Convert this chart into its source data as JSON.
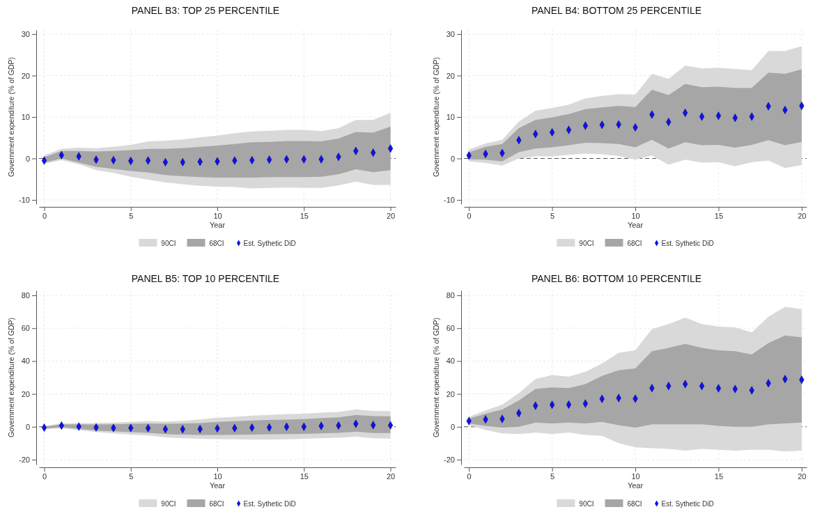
{
  "chart_data": [
    {
      "type": "scatter",
      "title": "PANEL B3: TOP 25 PERCENTILE",
      "xlabel": "Year",
      "ylabel": "Government expenditure (% of GDP)",
      "x": [
        0,
        1,
        2,
        3,
        4,
        5,
        6,
        7,
        8,
        9,
        10,
        11,
        12,
        13,
        14,
        15,
        16,
        17,
        18,
        19,
        20
      ],
      "xlim": [
        -0.3,
        20.3
      ],
      "xticks": [
        0,
        5,
        10,
        15,
        20
      ],
      "ylim": [
        -11,
        31
      ],
      "yticks": [
        -10,
        0,
        10,
        20,
        30
      ],
      "grid": true,
      "legend": "bottom",
      "marker": "diamond",
      "ref_lines": [
        {
          "axis": "y",
          "value": 0,
          "color": "#555555",
          "line_style": "dashed"
        }
      ],
      "series": [
        {
          "name": "90CI",
          "type": "area",
          "color": "#d9d9d9",
          "values": [
            null,
            null,
            null,
            null,
            null,
            null,
            null,
            null,
            null,
            null,
            null,
            null,
            null,
            null,
            null,
            null,
            null,
            null,
            null,
            null,
            null
          ],
          "lower": [
            -1.3,
            -0.4,
            -1.4,
            -2.8,
            -3.5,
            -4.4,
            -5.1,
            -5.8,
            -6.2,
            -6.6,
            -6.8,
            -6.9,
            -7.2,
            -7.1,
            -7,
            -7.1,
            -7.1,
            -6.5,
            -5.6,
            -6.4,
            -6.4
          ],
          "upper": [
            0.8,
            2.3,
            2.6,
            2.5,
            2.8,
            3.3,
            4.1,
            4.3,
            4.6,
            5.1,
            5.5,
            6.1,
            6.5,
            6.7,
            6.9,
            6.9,
            6.6,
            7.3,
            9.3,
            9.3,
            11
          ]
        },
        {
          "name": "68CI",
          "type": "area",
          "color": "#a6a6a6",
          "values": [
            null,
            null,
            null,
            null,
            null,
            null,
            null,
            null,
            null,
            null,
            null,
            null,
            null,
            null,
            null,
            null,
            null,
            null,
            null,
            null,
            null
          ],
          "lower": [
            -1,
            0,
            -1,
            -2,
            -2.5,
            -3,
            -3.4,
            -4,
            -4.3,
            -4.5,
            -4.6,
            -4.6,
            -4.6,
            -4.5,
            -4.5,
            -4.5,
            -4.4,
            -3.8,
            -2.6,
            -3.3,
            -2.8
          ],
          "upper": [
            0.3,
            1.8,
            1.8,
            1.7,
            1.8,
            2,
            2.3,
            2.3,
            2.5,
            2.8,
            3.1,
            3.5,
            3.9,
            4,
            4.2,
            4.2,
            4.1,
            4.8,
            6.4,
            6.2,
            7.7
          ]
        },
        {
          "name": "Est. Sythetic DiD",
          "color": "#1010ee",
          "values": [
            -0.5,
            0.8,
            0.5,
            -0.3,
            -0.4,
            -0.6,
            -0.5,
            -0.9,
            -0.9,
            -0.8,
            -0.7,
            -0.5,
            -0.4,
            -0.3,
            -0.2,
            -0.2,
            -0.2,
            0.4,
            1.8,
            1.4,
            2.4
          ]
        }
      ]
    },
    {
      "type": "scatter",
      "title": "PANEL B4: BOTTOM 25 PERCENTILE",
      "xlabel": "Year",
      "ylabel": "Government expenditure (% of GDP)",
      "x": [
        0,
        1,
        2,
        3,
        4,
        5,
        6,
        7,
        8,
        9,
        10,
        11,
        12,
        13,
        14,
        15,
        16,
        17,
        18,
        19,
        20
      ],
      "xlim": [
        -0.3,
        20.3
      ],
      "xticks": [
        0,
        5,
        10,
        15,
        20
      ],
      "ylim": [
        -11,
        31
      ],
      "yticks": [
        -10,
        0,
        10,
        20,
        30
      ],
      "grid": true,
      "legend": "bottom",
      "marker": "diamond",
      "ref_lines": [
        {
          "axis": "y",
          "value": 0,
          "color": "#555555",
          "line_style": "dashed"
        }
      ],
      "series": [
        {
          "name": "90CI",
          "type": "area",
          "color": "#d9d9d9",
          "values": [
            null,
            null,
            null,
            null,
            null,
            null,
            null,
            null,
            null,
            null,
            null,
            null,
            null,
            null,
            null,
            null,
            null,
            null,
            null,
            null,
            null
          ],
          "lower": [
            -0.7,
            -1.1,
            -1.7,
            0,
            0.5,
            0.5,
            0.9,
            1.2,
            1,
            0.6,
            -0.3,
            0.7,
            -1.5,
            -0.3,
            -1,
            -0.9,
            -1.9,
            -0.9,
            -0.5,
            -2.3,
            -1.6
          ],
          "upper": [
            2.2,
            3.6,
            4.5,
            8.9,
            11.5,
            12.2,
            13,
            14.5,
            15.1,
            15.5,
            15.4,
            20.4,
            19.2,
            22.4,
            21.7,
            21.9,
            21.6,
            21.3,
            25.9,
            25.9,
            27.1
          ]
        },
        {
          "name": "68CI",
          "type": "area",
          "color": "#a6a6a6",
          "values": [
            null,
            null,
            null,
            null,
            null,
            null,
            null,
            null,
            null,
            null,
            null,
            null,
            null,
            null,
            null,
            null,
            null,
            null,
            null,
            null,
            null
          ],
          "lower": [
            -0.2,
            -0.3,
            -0.7,
            1.5,
            2.4,
            2.7,
            3.2,
            3.8,
            3.7,
            3.5,
            2.7,
            4.5,
            2.4,
            3.9,
            3.2,
            3.3,
            2.6,
            3.3,
            4.4,
            3.2,
            4
          ],
          "upper": [
            1.5,
            2.8,
            3.5,
            7.3,
            9.3,
            9.9,
            10.7,
            11.9,
            12.3,
            12.7,
            12.4,
            16.6,
            15.3,
            18,
            17.2,
            17.3,
            17,
            17,
            20.7,
            20.4,
            21.5
          ]
        },
        {
          "name": "Est. Sythetic DiD",
          "color": "#1010ee",
          "values": [
            0.7,
            1.1,
            1.3,
            4.4,
            5.9,
            6.3,
            6.9,
            7.9,
            8.1,
            8.2,
            7.5,
            10.6,
            8.8,
            11,
            10.1,
            10.3,
            9.8,
            10.1,
            12.6,
            11.7,
            12.7
          ]
        }
      ]
    },
    {
      "type": "scatter",
      "title": "PANEL B5: TOP 10 PERCENTILE",
      "xlabel": "Year",
      "ylabel": "Government expenditure (% of GDP)",
      "x": [
        0,
        1,
        2,
        3,
        4,
        5,
        6,
        7,
        8,
        9,
        10,
        11,
        12,
        13,
        14,
        15,
        16,
        17,
        18,
        19,
        20
      ],
      "xlim": [
        -0.3,
        20.3
      ],
      "xticks": [
        0,
        5,
        10,
        15,
        20
      ],
      "ylim": [
        -23,
        83
      ],
      "yticks": [
        -20,
        0,
        20,
        40,
        60,
        80
      ],
      "grid": true,
      "legend": "bottom",
      "marker": "diamond",
      "ref_lines": [
        {
          "axis": "y",
          "value": 0,
          "color": "#555555",
          "line_style": "dashed"
        }
      ],
      "series": [
        {
          "name": "90CI",
          "type": "area",
          "color": "#d9d9d9",
          "values": [
            null,
            null,
            null,
            null,
            null,
            null,
            null,
            null,
            null,
            null,
            null,
            null,
            null,
            null,
            null,
            null,
            null,
            null,
            null,
            null,
            null
          ],
          "lower": [
            -1.6,
            -0.8,
            -2,
            -3.2,
            -4,
            -4.8,
            -5.3,
            -6.5,
            -7,
            -7.3,
            -7.5,
            -7.6,
            -7.8,
            -7.8,
            -7.6,
            -7.3,
            -7,
            -6.7,
            -6,
            -7,
            -7.2
          ],
          "upper": [
            0.5,
            2,
            2.2,
            2.2,
            2.5,
            3,
            3.5,
            3.2,
            3.6,
            4.5,
            5.5,
            6,
            6.8,
            7.2,
            7.7,
            8,
            8.6,
            9,
            10.6,
            9.7,
            9.5
          ]
        },
        {
          "name": "68CI",
          "type": "area",
          "color": "#a6a6a6",
          "values": [
            null,
            null,
            null,
            null,
            null,
            null,
            null,
            null,
            null,
            null,
            null,
            null,
            null,
            null,
            null,
            null,
            null,
            null,
            null,
            null,
            null
          ],
          "lower": [
            -1.1,
            -0.3,
            -1.3,
            -2.3,
            -2.8,
            -3.3,
            -3.7,
            -4.5,
            -4.8,
            -5,
            -5,
            -4.9,
            -4.8,
            -4.6,
            -4.4,
            -4.3,
            -4,
            -3.7,
            -3,
            -3.8,
            -3.8
          ],
          "upper": [
            0,
            1.5,
            1.5,
            1.4,
            1.5,
            1.8,
            2,
            1.8,
            2,
            2.2,
            3,
            3.4,
            3.8,
            4.1,
            4.4,
            4.7,
            5.3,
            5.7,
            7.2,
            6.5,
            6.4
          ]
        },
        {
          "name": "Est. Sythetic DiD",
          "color": "#1010ee",
          "values": [
            -0.5,
            0.7,
            0.1,
            -0.4,
            -0.7,
            -0.7,
            -0.8,
            -1.5,
            -1.5,
            -1.4,
            -1,
            -0.8,
            -0.5,
            -0.4,
            0,
            0,
            0.5,
            0.7,
            1.8,
            1,
            0.9
          ]
        }
      ]
    },
    {
      "type": "scatter",
      "title": "PANEL B6: BOTTOM 10 PERCENTILE",
      "xlabel": "Year",
      "ylabel": "Government expenditure (% of GDP)",
      "x": [
        0,
        1,
        2,
        3,
        4,
        5,
        6,
        7,
        8,
        9,
        10,
        11,
        12,
        13,
        14,
        15,
        16,
        17,
        18,
        19,
        20
      ],
      "xlim": [
        -0.3,
        20.3
      ],
      "xticks": [
        0,
        5,
        10,
        15,
        20
      ],
      "ylim": [
        -23,
        83
      ],
      "yticks": [
        -20,
        0,
        20,
        40,
        60,
        80
      ],
      "grid": true,
      "legend": "bottom",
      "marker": "diamond",
      "ref_lines": [
        {
          "axis": "y",
          "value": 0,
          "color": "#555555",
          "line_style": "dashed"
        }
      ],
      "series": [
        {
          "name": "90CI",
          "type": "area",
          "color": "#d9d9d9",
          "values": [
            null,
            null,
            null,
            null,
            null,
            null,
            null,
            null,
            null,
            null,
            null,
            null,
            null,
            null,
            null,
            null,
            null,
            null,
            null,
            null,
            null
          ],
          "lower": [
            1,
            -2,
            -4,
            -4.5,
            -3.5,
            -4.5,
            -3.5,
            -5,
            -5.5,
            -10,
            -12.5,
            -13,
            -13.5,
            -14.5,
            -13.5,
            -14,
            -14.5,
            -14,
            -14,
            -15,
            -14.5
          ],
          "upper": [
            6,
            10,
            13.5,
            20.5,
            29,
            31.5,
            30.5,
            33.5,
            38.5,
            45,
            46.5,
            59.5,
            62.5,
            66.5,
            62.5,
            61,
            60.5,
            57.5,
            67,
            73,
            71.5
          ]
        },
        {
          "name": "68CI",
          "type": "area",
          "color": "#a6a6a6",
          "values": [
            null,
            null,
            null,
            null,
            null,
            null,
            null,
            null,
            null,
            null,
            null,
            null,
            null,
            null,
            null,
            null,
            null,
            null,
            null,
            null,
            null
          ],
          "lower": [
            2,
            0.5,
            -0.5,
            0,
            2.5,
            2,
            2.5,
            2,
            3,
            1,
            -0.5,
            1.5,
            1.5,
            1.5,
            1.5,
            0.5,
            0,
            0,
            1.5,
            2,
            2.5
          ],
          "upper": [
            5,
            8,
            10.5,
            16,
            23,
            24,
            23.5,
            26,
            31,
            34.5,
            35.5,
            46,
            48,
            50.5,
            48,
            46.5,
            46,
            44,
            51,
            55.5,
            54.5
          ]
        },
        {
          "name": "Est. Sythetic DiD",
          "color": "#1010ee",
          "values": [
            3.5,
            4.5,
            4.8,
            8.3,
            12.8,
            13.4,
            13.5,
            14.1,
            17,
            17.5,
            17.1,
            23.5,
            24.8,
            26,
            24.8,
            23.4,
            23,
            22.2,
            26.5,
            29,
            28.6
          ]
        }
      ]
    }
  ]
}
